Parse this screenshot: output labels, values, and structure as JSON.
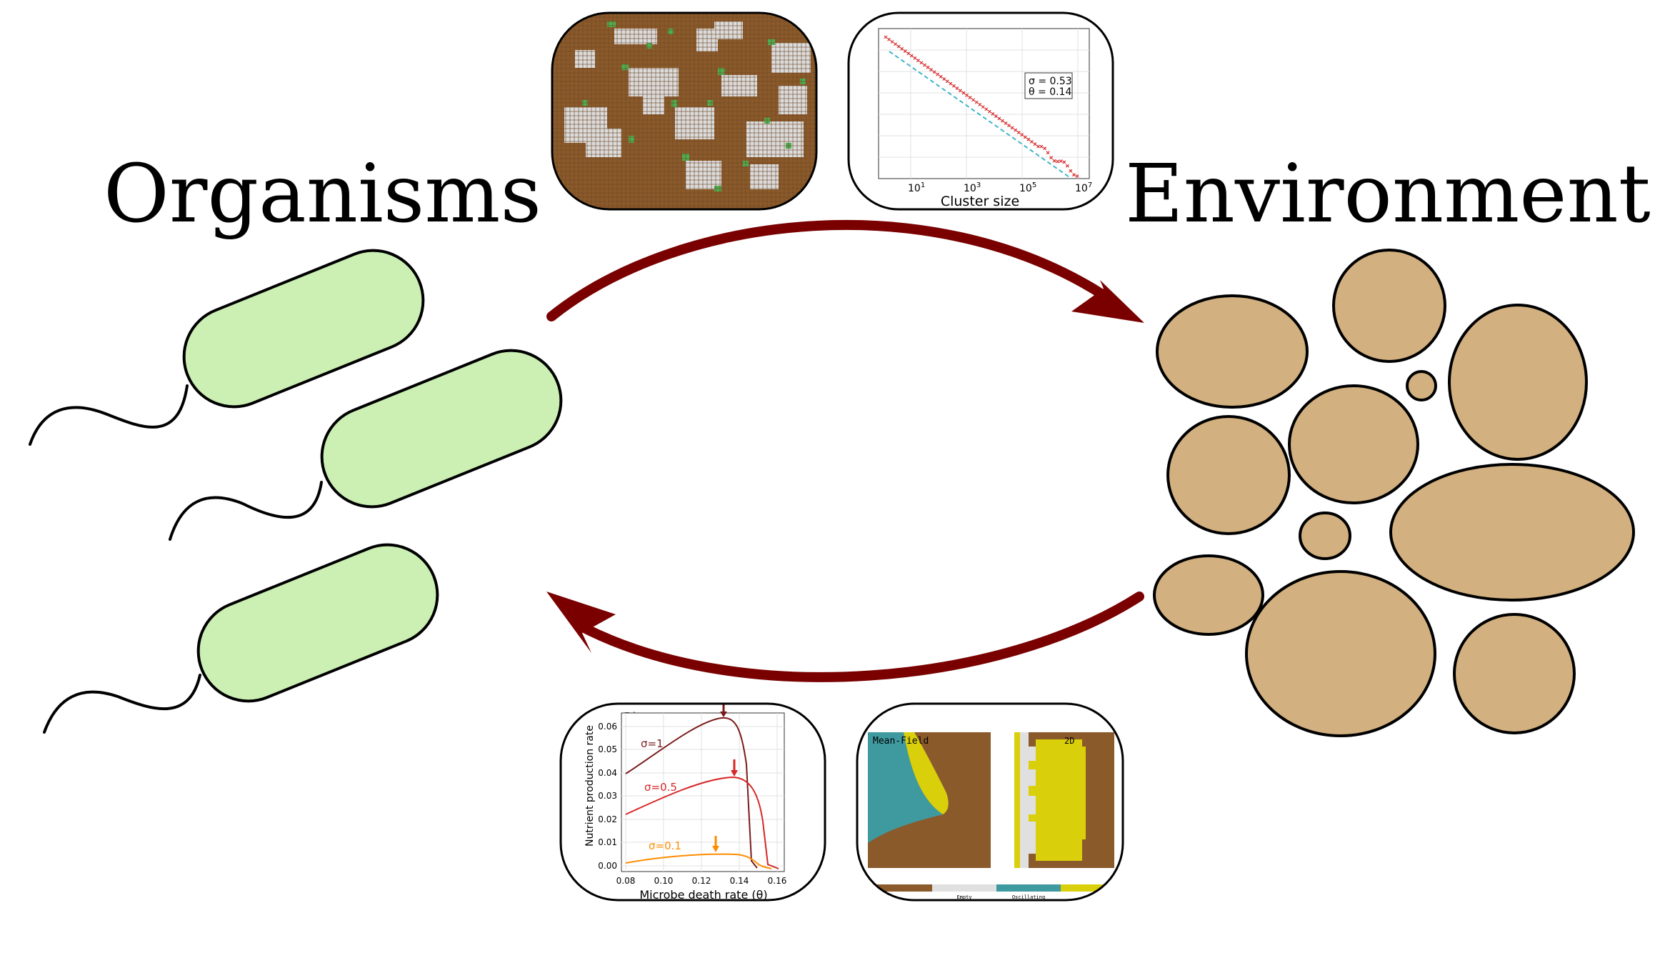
{
  "labels": {
    "organisms": "Organisms",
    "environment": "Environment"
  },
  "colors": {
    "bacterium_fill": "#ccf0b4",
    "soil_fill": "#d2b07f",
    "arrow": "#7a0000",
    "soil_brown": "#8b5a2b",
    "empty_grey": "#dcdcdc",
    "plant_green": "#4caf50",
    "teal": "#3f9aa0",
    "yellow": "#d9cf0b",
    "dark_red": "#7a1b1b",
    "red": "#d62728",
    "orange": "#ff8c00"
  },
  "panel_cluster": {
    "annotation_sigma": "σ = 0.53",
    "annotation_theta": "θ = 0.14",
    "xlabel": "Cluster size",
    "xtick_base": "10",
    "xtick_exponents": [
      "1",
      "3",
      "5",
      "7"
    ]
  },
  "panel_nutrient": {
    "panel_label": "B)",
    "ylabel": "Nutrient production rate",
    "xlabel": "Microbe death rate (θ)",
    "yticks": [
      "0.06",
      "0.05",
      "0.04",
      "0.03",
      "0.02",
      "0.01",
      "0.00"
    ],
    "xticks": [
      "0.08",
      "0.10",
      "0.12",
      "0.14",
      "0.16"
    ],
    "series_labels": [
      "σ=1",
      "σ=0.5",
      "σ=0.1"
    ]
  },
  "panel_phase": {
    "left_title": "Mean-Field",
    "right_title": "2D",
    "legend_empty": "Empty",
    "legend_oscillating": "Oscillating"
  }
}
